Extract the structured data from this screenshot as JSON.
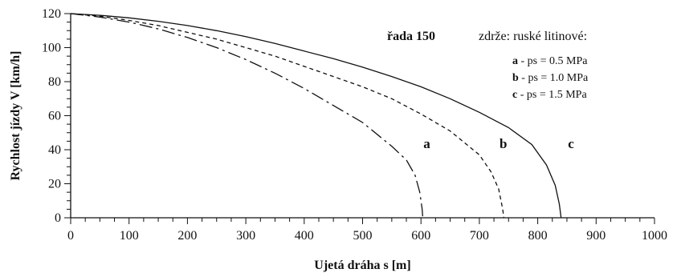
{
  "chart_data": {
    "type": "line",
    "title": "",
    "xlabel": "Ujetá dráha s [m]",
    "ylabel": "Rychlost jízdy V [km/h]",
    "xlim": [
      0,
      1000
    ],
    "ylim": [
      0,
      120
    ],
    "x_ticks": [
      "0",
      "100",
      "200",
      "300",
      "400",
      "500",
      "600",
      "700",
      "800",
      "900",
      "1000"
    ],
    "y_ticks": [
      "0",
      "20",
      "40",
      "60",
      "80",
      "100",
      "120"
    ],
    "grid": false,
    "legend_position": "top-right",
    "legend": {
      "series_label": "řada 150",
      "brake_label": "zdrže: ruské litinové:",
      "entries": [
        {
          "key": "a",
          "text": " - ps = 0.5 MPa"
        },
        {
          "key": "b",
          "text": " - ps = 1.0 MPa"
        },
        {
          "key": "c",
          "text": " - ps = 1.5 MPa"
        }
      ]
    },
    "series": [
      {
        "name": "a",
        "style": "dash-dot",
        "points": [
          [
            0,
            120
          ],
          [
            50,
            118
          ],
          [
            100,
            115
          ],
          [
            150,
            111
          ],
          [
            200,
            106
          ],
          [
            250,
            100
          ],
          [
            300,
            93
          ],
          [
            350,
            85
          ],
          [
            400,
            76
          ],
          [
            450,
            66
          ],
          [
            500,
            56
          ],
          [
            550,
            42
          ],
          [
            575,
            34
          ],
          [
            590,
            25
          ],
          [
            598,
            15
          ],
          [
            602,
            5
          ],
          [
            603,
            0
          ]
        ]
      },
      {
        "name": "b",
        "style": "dashed",
        "points": [
          [
            0,
            120
          ],
          [
            50,
            118.5
          ],
          [
            100,
            116
          ],
          [
            150,
            113
          ],
          [
            200,
            109
          ],
          [
            250,
            105
          ],
          [
            300,
            100
          ],
          [
            350,
            95
          ],
          [
            400,
            89
          ],
          [
            450,
            83
          ],
          [
            500,
            77
          ],
          [
            550,
            70
          ],
          [
            600,
            61
          ],
          [
            650,
            51
          ],
          [
            700,
            37
          ],
          [
            720,
            27
          ],
          [
            733,
            17
          ],
          [
            740,
            5
          ],
          [
            742,
            0
          ]
        ]
      },
      {
        "name": "c",
        "style": "solid",
        "points": [
          [
            0,
            120
          ],
          [
            50,
            119
          ],
          [
            100,
            117.5
          ],
          [
            150,
            115.5
          ],
          [
            200,
            113
          ],
          [
            250,
            110
          ],
          [
            300,
            106.5
          ],
          [
            350,
            102.5
          ],
          [
            400,
            98
          ],
          [
            450,
            93.5
          ],
          [
            500,
            88.5
          ],
          [
            550,
            83
          ],
          [
            600,
            77
          ],
          [
            650,
            70
          ],
          [
            700,
            62
          ],
          [
            750,
            53
          ],
          [
            790,
            43
          ],
          [
            815,
            31
          ],
          [
            830,
            19
          ],
          [
            837,
            8
          ],
          [
            840,
            0
          ]
        ]
      }
    ],
    "curve_labels": [
      {
        "text": "a",
        "x": 610,
        "y": 41
      },
      {
        "text": "b",
        "x": 741,
        "y": 41
      },
      {
        "text": "c",
        "x": 857,
        "y": 41
      }
    ]
  }
}
